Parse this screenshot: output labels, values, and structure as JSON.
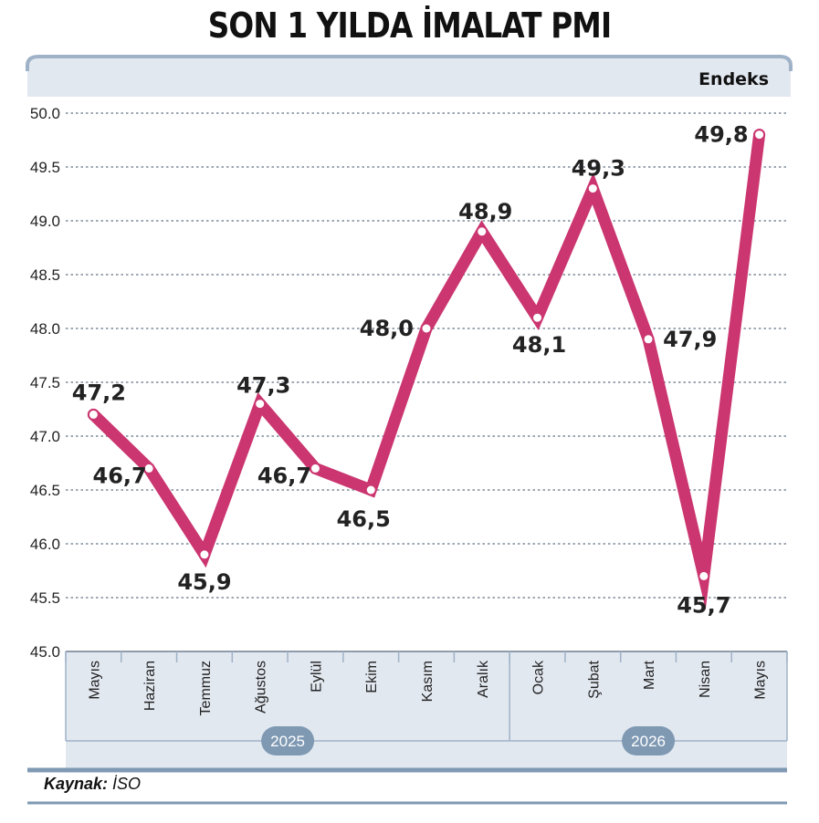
{
  "title": "SON 1 YILDA İMALAT PMI",
  "source_label": "Kaynak:",
  "source_value": "İSO",
  "colors": {
    "line": "#cb3670",
    "panel": "#e2e8f0",
    "rule": "#9fb2c7",
    "badge": "#7f99b3"
  },
  "chart_data": {
    "type": "line",
    "unit_label": "Endeks",
    "categories": [
      "Mayıs",
      "Haziran",
      "Temmuz",
      "Ağustos",
      "Eylül",
      "Ekim",
      "Kasım",
      "Aralık",
      "Ocak",
      "Şubat",
      "Mart",
      "Nisan",
      "Mayıs"
    ],
    "years": [
      {
        "label": "2025",
        "start": 0,
        "end": 7
      },
      {
        "label": "2026",
        "start": 8,
        "end": 12
      }
    ],
    "values": [
      47.2,
      46.7,
      45.9,
      47.3,
      46.7,
      46.5,
      48.0,
      48.9,
      48.1,
      49.3,
      47.9,
      45.7,
      49.8
    ],
    "value_labels": [
      "47,2",
      "46,7",
      "45,9",
      "47,3",
      "46,7",
      "46,5",
      "48,0",
      "48,9",
      "48,1",
      "49,3",
      "47,9",
      "45,7",
      "49,8"
    ],
    "ylim": [
      45.0,
      50.0
    ],
    "yticks": [
      "45.0",
      "45.5",
      "46.0",
      "46.5",
      "47.0",
      "47.5",
      "48.0",
      "48.5",
      "49.0",
      "49.5",
      "50.0"
    ],
    "grid": true
  }
}
